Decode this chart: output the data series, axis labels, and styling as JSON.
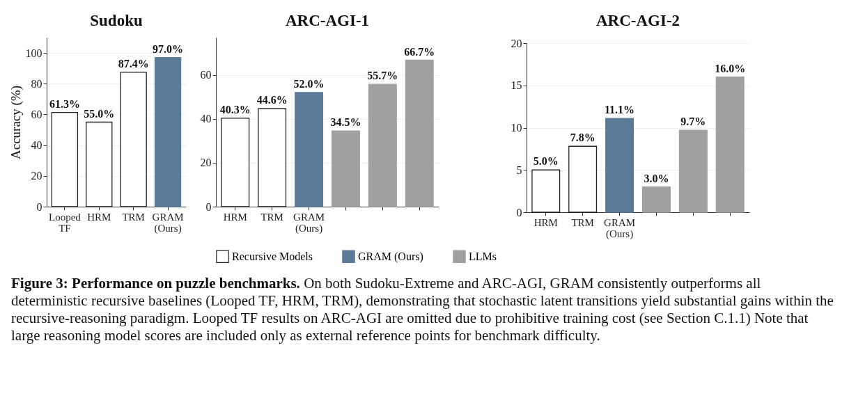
{
  "chart_data": [
    {
      "type": "bar",
      "title": "Sudoku",
      "ylabel": "Accuracy (%)",
      "categories": [
        "Looped TF",
        "HRM",
        "TRM",
        "GRAM (Ours)"
      ],
      "series": [
        {
          "color": "#ffffff",
          "values": [
            61.3,
            55.0,
            87.4,
            null
          ],
          "value_labels": [
            "61.3%",
            "55.0%",
            "87.4%",
            null
          ]
        },
        {
          "color": "#5b7b98",
          "values": [
            null,
            null,
            null,
            97.0
          ],
          "value_labels": [
            null,
            null,
            null,
            "97.0%"
          ]
        }
      ],
      "ylim": [
        0,
        110
      ],
      "yticks": [
        0,
        20,
        40,
        60,
        80,
        100
      ],
      "grid": "y",
      "annotations": [
        "Figure 3: Performance on puzzle benchmarks.",
        "On both Sudoku-Extreme and ARC-AGI, GRAM consistently outperforms all deterministic recursive baselines (Looped TF, HRM, TRM), demonstrating that stochastic latent transitions yield substantial gains within the recursive-reasoning paradigm. Looped TF results on ARC-AGI are omitted due to prohibitive training cost (see Section C.1.1) Note that large reasoning model scores are included only as external reference points for benchmark difficulty."
      ]
    },
    {
      "type": "bar",
      "title": "ARC-AGI-1",
      "categories": [
        "HRM",
        "TRM",
        "GRAM (Ours)",
        null,
        null,
        null
      ],
      "series": [
        {
          "name": "Recursive Models",
          "color": "#ffffff",
          "values": [
            40.3,
            44.6,
            null,
            null,
            null,
            null
          ],
          "value_labels": [
            "40.3%",
            "44.6%",
            null,
            null,
            null,
            null
          ]
        },
        {
          "name": "GRAM (Ours)",
          "color": "#5b7b98",
          "values": [
            null,
            null,
            52.0,
            null,
            null,
            null
          ],
          "value_labels": [
            null,
            null,
            "52.0%",
            null,
            null,
            null
          ]
        },
        {
          "name": "LLMs",
          "color": "#a0a0a0",
          "values": [
            null,
            null,
            null,
            34.5,
            55.7,
            66.7
          ],
          "value_labels": [
            null,
            null,
            null,
            "34.5%",
            "55.7%",
            "66.7%"
          ]
        }
      ],
      "ylim": [
        0,
        77
      ],
      "yticks": [
        0,
        20,
        40,
        60
      ],
      "grid": "y",
      "legend": "bottom"
    },
    {
      "type": "bar",
      "title": "ARC-AGI-2",
      "categories": [
        "HRM",
        "TRM",
        "GRAM (Ours)",
        null,
        null,
        null
      ],
      "series": [
        {
          "color": "#ffffff",
          "values": [
            5.0,
            7.8,
            null,
            null,
            null,
            null
          ],
          "value_labels": [
            "5.0%",
            "7.8%",
            null,
            null,
            null,
            null
          ]
        },
        {
          "color": "#5b7b98",
          "values": [
            null,
            null,
            11.1,
            null,
            null,
            null
          ],
          "value_labels": [
            null,
            null,
            "11.1%",
            null,
            null,
            null
          ]
        },
        {
          "color": "#a0a0a0",
          "values": [
            null,
            null,
            null,
            3.0,
            9.7,
            16.0
          ],
          "value_labels": [
            null,
            null,
            null,
            "3.0%",
            "9.7%",
            "16.0%"
          ]
        }
      ],
      "ylim": [
        0,
        20
      ],
      "yticks": [
        0,
        5,
        10,
        15,
        20
      ],
      "grid": "y"
    }
  ]
}
